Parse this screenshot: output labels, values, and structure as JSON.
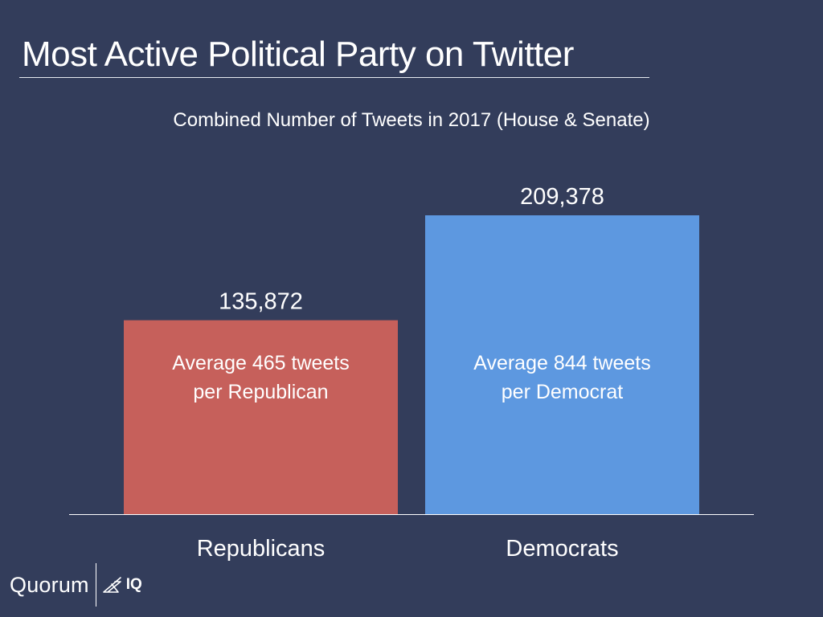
{
  "slide": {
    "title": "Most Active Political Party on Twitter"
  },
  "chart_data": {
    "type": "bar",
    "title": "Combined Number of Tweets in 2017 (House & Senate)",
    "categories": [
      "Republicans",
      "Democrats"
    ],
    "values": [
      135872,
      209378
    ],
    "value_labels": [
      "135,872",
      "209,378"
    ],
    "annotations": [
      [
        "Average 465 tweets",
        "per Republican"
      ],
      [
        "Average 844 tweets",
        "per Democrat"
      ]
    ],
    "colors": [
      "#c6605b",
      "#5d98e0"
    ],
    "ylim": [
      0,
      240000
    ],
    "grid": false,
    "legend": "none"
  },
  "logo": {
    "word": "Quorum",
    "suffix": "IQ"
  },
  "colors": {
    "background": "#333d5b",
    "text": "#ffffff",
    "axis": "#ffffff"
  }
}
